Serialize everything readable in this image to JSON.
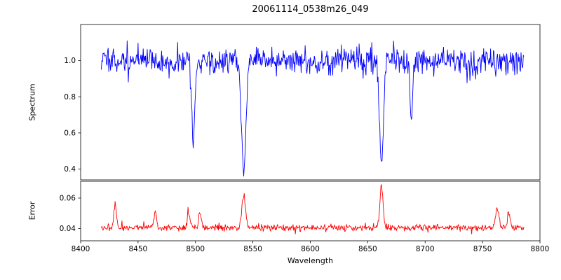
{
  "figure": {
    "background": "#ffffff",
    "spine_color": "#000000",
    "text_color": "#000000"
  },
  "chart_data": {
    "type": "line",
    "title": "20061114_0538m26_049",
    "xlabel": "Wavelength",
    "grid": false,
    "legend": "none",
    "x_axis": {
      "min": 8400,
      "max": 8800,
      "ticks": [
        8400,
        8450,
        8500,
        8550,
        8600,
        8650,
        8700,
        8750,
        8800
      ],
      "tick_labels": [
        "8400",
        "8450",
        "8500",
        "8550",
        "8600",
        "8650",
        "8700",
        "8750",
        "8800"
      ]
    },
    "x_data_range": [
      8418,
      8786
    ],
    "sample_step": 0.5,
    "subplots": [
      {
        "name": "spectrum",
        "ylabel": "Spectrum",
        "line_color": "#0000ff",
        "ylim": [
          0.34,
          1.2
        ],
        "yticks": [
          0.4,
          0.6,
          0.8,
          1.0
        ],
        "ytick_labels": [
          "0.4",
          "0.6",
          "0.8",
          "1.0"
        ],
        "continuum_level": 1.0,
        "noise_sigma": 0.036,
        "tail_amp": 0.05,
        "tail_thresh": 2.4,
        "absorption_lines": [
          {
            "center": 8498,
            "depth": 0.46,
            "sigma": 1.4,
            "observed_min": 0.54
          },
          {
            "center": 8542,
            "depth": 0.63,
            "sigma": 1.9,
            "observed_min": 0.37
          },
          {
            "center": 8662,
            "depth": 0.57,
            "sigma": 1.7,
            "observed_min": 0.43
          },
          {
            "center": 8688,
            "depth": 0.34,
            "sigma": 1.1,
            "observed_min": 0.65
          }
        ]
      },
      {
        "name": "error",
        "ylabel": "Error",
        "line_color": "#ff0000",
        "ylim": [
          0.032,
          0.071
        ],
        "yticks": [
          0.04,
          0.06
        ],
        "ytick_labels": [
          "0.04",
          "0.06"
        ],
        "baseline": 0.0405,
        "noise_sigma": 0.0011,
        "tail_amp": 0.004,
        "tail_thresh": 2.0,
        "spikes": [
          {
            "center": 8430,
            "amp": 0.016,
            "sigma": 1.2
          },
          {
            "center": 8465,
            "amp": 0.011,
            "sigma": 1.0
          },
          {
            "center": 8494,
            "amp": 0.009,
            "sigma": 1.1
          },
          {
            "center": 8504,
            "amp": 0.009,
            "sigma": 1.1
          },
          {
            "center": 8542,
            "amp": 0.021,
            "sigma": 1.6
          },
          {
            "center": 8662,
            "amp": 0.027,
            "sigma": 1.4
          },
          {
            "center": 8763,
            "amp": 0.013,
            "sigma": 1.4
          },
          {
            "center": 8773,
            "amp": 0.01,
            "sigma": 1.2
          }
        ]
      }
    ]
  }
}
